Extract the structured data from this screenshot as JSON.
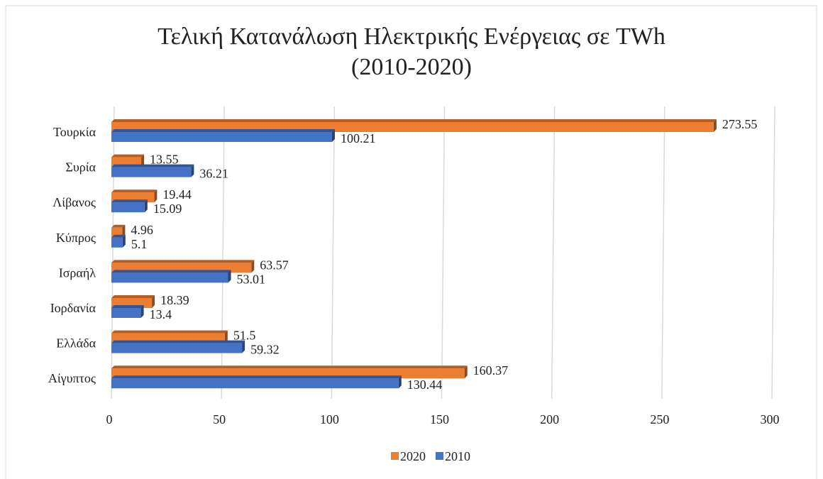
{
  "chart_data": {
    "type": "bar",
    "orientation": "horizontal",
    "title": "Τελική Κατανάλωση Ηλεκτρικής Ενέργειας σε TWh (2010-2020)",
    "categories": [
      "Τουρκία",
      "Συρία",
      "Λίβανος",
      "Κύπρος",
      "Ισραήλ",
      "Ιορδανία",
      "Ελλάδα",
      "Αίγυπτος"
    ],
    "series": [
      {
        "name": "2020",
        "color": "#ed7d31",
        "values": [
          273.55,
          13.55,
          19.44,
          4.96,
          63.57,
          18.39,
          51.5,
          160.37
        ]
      },
      {
        "name": "2010",
        "color": "#4472c4",
        "values": [
          100.21,
          36.21,
          15.09,
          5.1,
          53.01,
          13.4,
          59.32,
          130.44
        ]
      }
    ],
    "xlim": [
      0,
      300
    ],
    "xticks": [
      0,
      50,
      100,
      150,
      200,
      250,
      300
    ],
    "grid": true,
    "legend": "bottom"
  }
}
